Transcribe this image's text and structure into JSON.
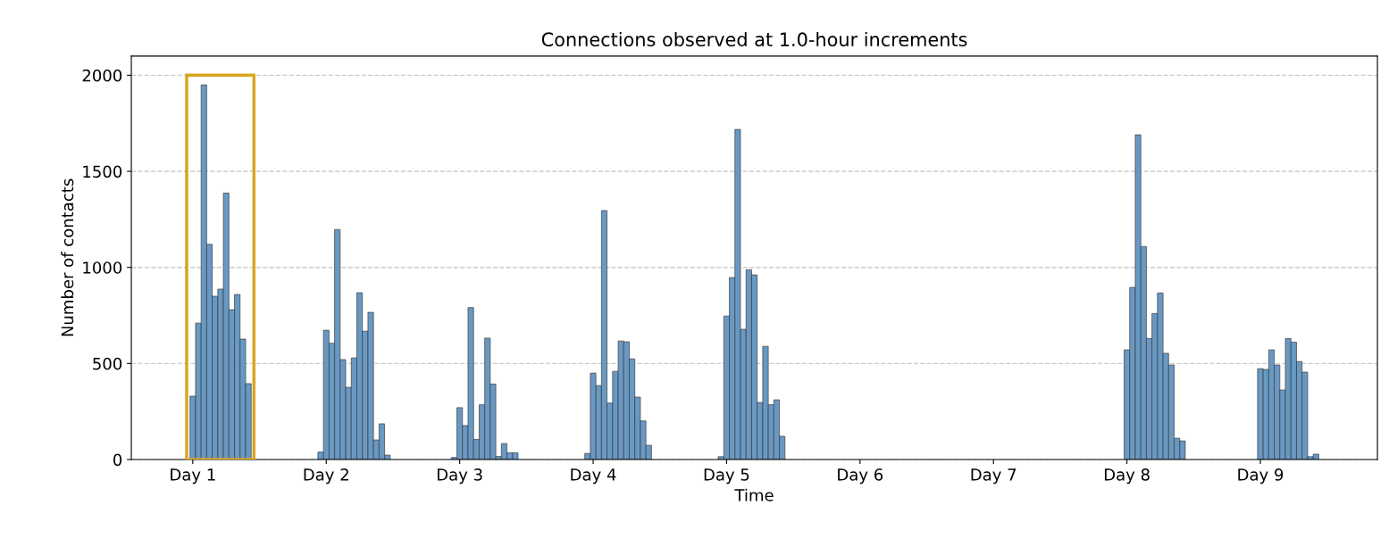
{
  "chart_data": {
    "type": "bar",
    "title": "Connections observed at 1.0-hour increments",
    "xlabel": "Time",
    "ylabel": "Number of contacts",
    "categories": [
      "Day 1",
      null,
      null,
      null,
      null,
      null,
      null,
      null,
      null,
      null,
      null,
      null,
      null,
      null,
      null,
      null,
      null,
      null,
      null,
      null,
      null,
      null,
      null,
      null,
      "Day 2",
      null,
      null,
      null,
      null,
      null,
      null,
      null,
      null,
      null,
      null,
      null,
      null,
      null,
      null,
      null,
      null,
      null,
      null,
      null,
      null,
      null,
      null,
      null,
      "Day 3",
      null,
      null,
      null,
      null,
      null,
      null,
      null,
      null,
      null,
      null,
      null,
      null,
      null,
      null,
      null,
      null,
      null,
      null,
      null,
      null,
      null,
      null,
      null,
      "Day 4",
      null,
      null,
      null,
      null,
      null,
      null,
      null,
      null,
      null,
      null,
      null,
      null,
      null,
      null,
      null,
      null,
      null,
      null,
      null,
      null,
      null,
      null,
      null,
      "Day 5",
      null,
      null,
      null,
      null,
      null,
      null,
      null,
      null,
      null,
      null,
      null,
      null,
      null,
      null,
      null,
      null,
      null,
      null,
      null,
      null,
      null,
      null,
      null,
      "Day 6",
      null,
      null,
      null,
      null,
      null,
      null,
      null,
      null,
      null,
      null,
      null,
      null,
      null,
      null,
      null,
      null,
      null,
      null,
      null,
      null,
      null,
      null,
      null,
      "Day 7",
      null,
      null,
      null,
      null,
      null,
      null,
      null,
      null,
      null,
      null,
      null,
      null,
      null,
      null,
      null,
      null,
      null,
      null,
      null,
      null,
      null,
      null,
      null,
      "Day 8",
      null,
      null,
      null,
      null,
      null,
      null,
      null,
      null,
      null,
      null,
      null,
      null,
      null,
      null,
      null,
      null,
      null,
      null,
      null,
      null,
      null,
      null,
      null,
      "Day 9",
      null,
      null,
      null,
      null,
      null,
      null,
      null,
      null,
      null,
      null
    ],
    "values": [
      330,
      710,
      1950,
      1120,
      850,
      887,
      1387,
      780,
      859,
      627,
      395,
      null,
      null,
      null,
      null,
      null,
      null,
      null,
      null,
      null,
      null,
      null,
      null,
      39,
      673,
      605,
      1197,
      520,
      376,
      529,
      868,
      668,
      766,
      102,
      186,
      23,
      null,
      null,
      null,
      null,
      null,
      null,
      null,
      null,
      null,
      null,
      null,
      11,
      270,
      177,
      791,
      105,
      285,
      632,
      393,
      16,
      83,
      35,
      35,
      null,
      null,
      null,
      null,
      null,
      null,
      null,
      null,
      null,
      null,
      null,
      null,
      32,
      450,
      385,
      1296,
      294,
      459,
      617,
      613,
      524,
      325,
      201,
      74,
      null,
      null,
      null,
      null,
      null,
      null,
      null,
      null,
      null,
      null,
      null,
      null,
      15,
      747,
      947,
      1718,
      678,
      988,
      961,
      297,
      589,
      285,
      311,
      121,
      null,
      null,
      null,
      null,
      null,
      null,
      null,
      null,
      null,
      null,
      null,
      null,
      null,
      null,
      null,
      null,
      null,
      null,
      null,
      null,
      null,
      null,
      null,
      null,
      null,
      null,
      null,
      null,
      null,
      null,
      null,
      null,
      null,
      null,
      null,
      null,
      null,
      null,
      null,
      null,
      null,
      null,
      null,
      null,
      null,
      null,
      null,
      null,
      null,
      null,
      null,
      null,
      null,
      null,
      null,
      null,
      null,
      null,
      null,
      null,
      null,
      571,
      896,
      1690,
      1109,
      630,
      760,
      867,
      553,
      492,
      111,
      97,
      null,
      null,
      null,
      null,
      null,
      null,
      null,
      null,
      null,
      null,
      null,
      null,
      null,
      473,
      469,
      571,
      492,
      362,
      630,
      611,
      510,
      455,
      15,
      28
    ],
    "color": "#6899c4",
    "ylim": [
      0,
      2100
    ],
    "yticks": [
      0,
      500,
      1000,
      1500,
      2000
    ],
    "grid": "y"
  }
}
